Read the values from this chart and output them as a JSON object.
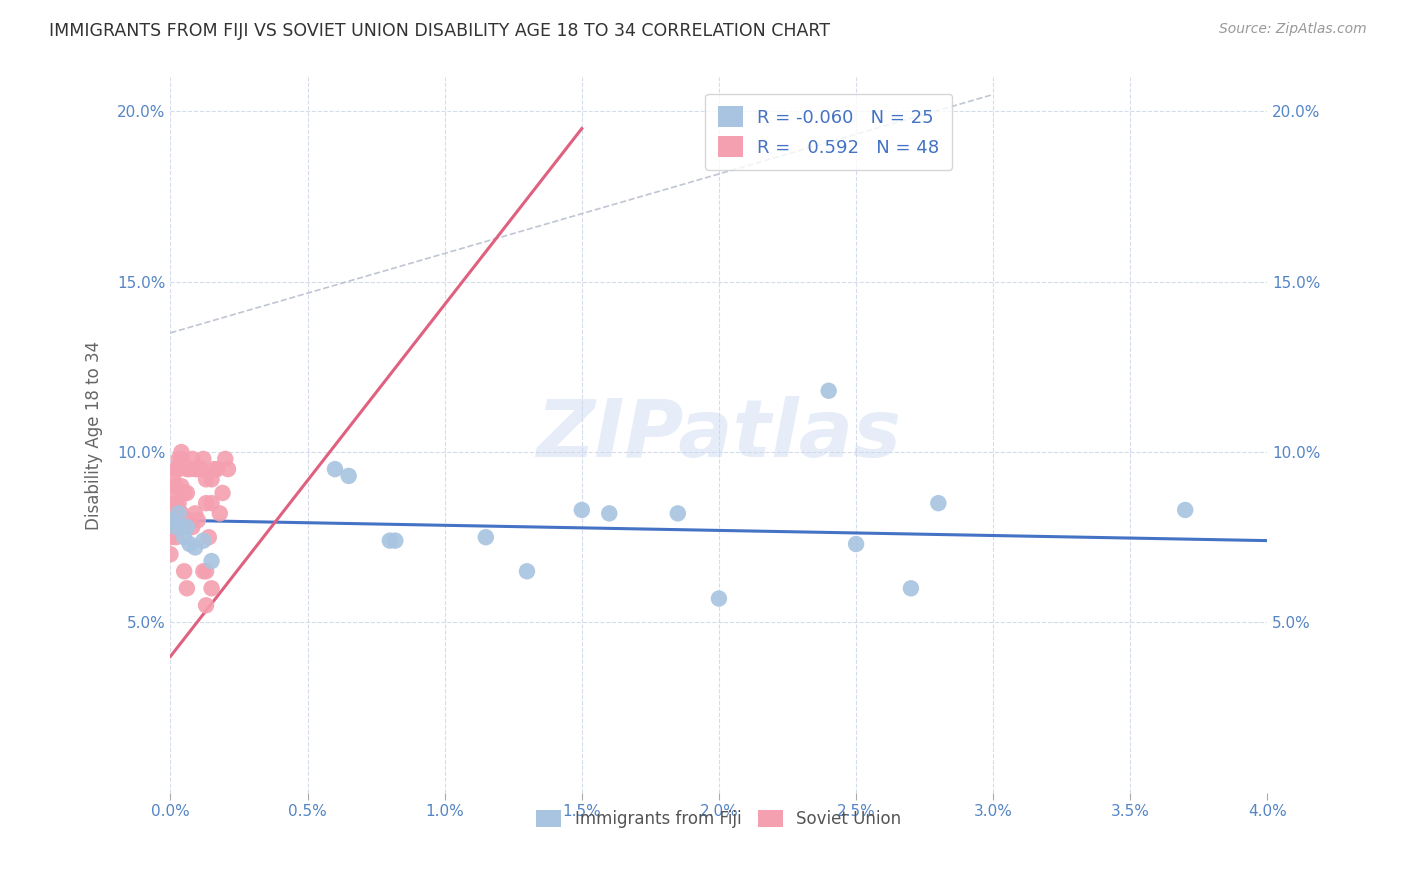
{
  "title": "IMMIGRANTS FROM FIJI VS SOVIET UNION DISABILITY AGE 18 TO 34 CORRELATION CHART",
  "source": "Source: ZipAtlas.com",
  "xlabel_label": "Immigrants from Fiji",
  "ylabel_label": "Disability Age 18 to 34",
  "x_min": 0.0,
  "x_max": 0.04,
  "y_min": 0.0,
  "y_max": 0.21,
  "x_ticks": [
    0.0,
    0.005,
    0.01,
    0.015,
    0.02,
    0.025,
    0.03,
    0.035,
    0.04
  ],
  "y_ticks": [
    0.05,
    0.1,
    0.15,
    0.2
  ],
  "fiji_R": -0.06,
  "fiji_N": 25,
  "soviet_R": 0.592,
  "soviet_N": 48,
  "fiji_color": "#a8c4e0",
  "soviet_color": "#f4a0b0",
  "fiji_line_color": "#4472c4",
  "soviet_line_color": "#e06080",
  "fiji_scatter_x": [
    0.0,
    0.0002,
    0.0003,
    0.0004,
    0.0005,
    0.0006,
    0.0007,
    0.0009,
    0.0012,
    0.0015,
    0.006,
    0.0065,
    0.008,
    0.0082,
    0.0115,
    0.013,
    0.015,
    0.016,
    0.0185,
    0.02,
    0.024,
    0.025,
    0.027,
    0.028,
    0.037
  ],
  "fiji_scatter_y": [
    0.08,
    0.078,
    0.082,
    0.078,
    0.075,
    0.078,
    0.073,
    0.072,
    0.074,
    0.068,
    0.095,
    0.093,
    0.074,
    0.074,
    0.075,
    0.065,
    0.083,
    0.082,
    0.082,
    0.057,
    0.118,
    0.073,
    0.06,
    0.085,
    0.083
  ],
  "soviet_scatter_x": [
    0.0,
    0.0,
    0.0,
    0.0001,
    0.0001,
    0.0001,
    0.0001,
    0.0002,
    0.0002,
    0.0002,
    0.0002,
    0.0003,
    0.0003,
    0.0003,
    0.0004,
    0.0004,
    0.0004,
    0.0004,
    0.0005,
    0.0005,
    0.0006,
    0.0006,
    0.0006,
    0.0007,
    0.0007,
    0.0008,
    0.0008,
    0.0009,
    0.0009,
    0.001,
    0.001,
    0.0011,
    0.0012,
    0.0013,
    0.0013,
    0.0013,
    0.0014,
    0.0015,
    0.0015,
    0.0015,
    0.0016,
    0.0017,
    0.0018,
    0.0019,
    0.002,
    0.0021,
    0.0012,
    0.0013
  ],
  "soviet_scatter_y": [
    0.078,
    0.075,
    0.07,
    0.092,
    0.088,
    0.082,
    0.078,
    0.095,
    0.09,
    0.085,
    0.075,
    0.098,
    0.095,
    0.085,
    0.1,
    0.098,
    0.09,
    0.082,
    0.088,
    0.065,
    0.095,
    0.088,
    0.06,
    0.095,
    0.08,
    0.098,
    0.078,
    0.095,
    0.082,
    0.095,
    0.08,
    0.095,
    0.098,
    0.092,
    0.085,
    0.065,
    0.075,
    0.092,
    0.085,
    0.06,
    0.095,
    0.095,
    0.082,
    0.088,
    0.098,
    0.095,
    0.065,
    0.055
  ],
  "fiji_line_x": [
    0.0,
    0.04
  ],
  "fiji_line_y": [
    0.08,
    0.074
  ],
  "soviet_line_x": [
    0.0,
    0.015
  ],
  "soviet_line_y": [
    0.04,
    0.195
  ],
  "diag_line_x": [
    0.0,
    0.03
  ],
  "diag_line_y": [
    0.135,
    0.205
  ],
  "watermark_text": "ZIPatlas",
  "background_color": "#ffffff",
  "grid_color": "#d0d8e8",
  "legend_fiji_label": "R = -0.060   N = 25",
  "legend_soviet_label": "R =   0.592   N = 48"
}
